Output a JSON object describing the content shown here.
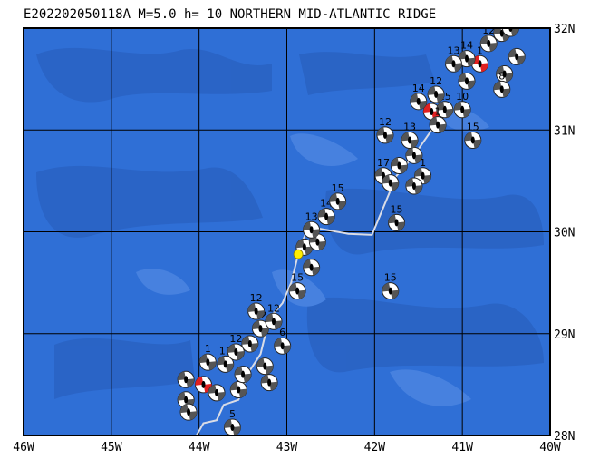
{
  "title": "E202202050118A M=5.0 h= 10 NORTHERN MID-ATLANTIC RIDGE",
  "map": {
    "lon_min": -46,
    "lon_max": -40,
    "lat_min": 28,
    "lat_max": 32,
    "lon_ticks": [
      {
        "value": -46,
        "label": "46W"
      },
      {
        "value": -45,
        "label": "45W"
      },
      {
        "value": -44,
        "label": "44W"
      },
      {
        "value": -43,
        "label": "43W"
      },
      {
        "value": -42,
        "label": "42W"
      },
      {
        "value": -41,
        "label": "41W"
      },
      {
        "value": -40,
        "label": "40W"
      }
    ],
    "lat_ticks": [
      {
        "value": 32,
        "label": "32N"
      },
      {
        "value": 31,
        "label": "31N"
      },
      {
        "value": 30,
        "label": "30N"
      },
      {
        "value": 29,
        "label": "29N"
      },
      {
        "value": 28,
        "label": "28N"
      }
    ],
    "colors": {
      "ocean": "#2f6fd6",
      "ocean_deep": "#2a63c4",
      "ocean_shallow": "#4a84e0",
      "grid": "#000000",
      "ridge": "#d9dce6",
      "highlight": "#e02020",
      "epicenter": "#ffee00"
    },
    "ridge_path": [
      [
        -44.03,
        28.0
      ],
      [
        -43.95,
        28.12
      ],
      [
        -43.8,
        28.15
      ],
      [
        -43.72,
        28.3
      ],
      [
        -43.55,
        28.35
      ],
      [
        -43.45,
        28.6
      ],
      [
        -43.3,
        28.8
      ],
      [
        -43.2,
        29.15
      ],
      [
        -43.05,
        29.3
      ],
      [
        -42.95,
        29.5
      ],
      [
        -42.85,
        29.85
      ],
      [
        -42.75,
        30.05
      ],
      [
        -42.3,
        29.98
      ],
      [
        -42.03,
        29.97
      ],
      [
        -41.75,
        30.55
      ],
      [
        -41.55,
        30.75
      ],
      [
        -41.35,
        31.0
      ],
      [
        -41.3,
        31.15
      ]
    ],
    "epicenter": {
      "lon": -42.87,
      "lat": 29.78
    },
    "mechanisms": [
      {
        "lon": -43.95,
        "lat": 28.5,
        "label": "",
        "color": "highlight"
      },
      {
        "lon": -43.8,
        "lat": 28.42,
        "label": ""
      },
      {
        "lon": -44.15,
        "lat": 28.55,
        "label": ""
      },
      {
        "lon": -43.55,
        "lat": 28.45,
        "label": ""
      },
      {
        "lon": -43.5,
        "lat": 28.6,
        "label": ""
      },
      {
        "lon": -43.7,
        "lat": 28.7,
        "label": "11"
      },
      {
        "lon": -43.9,
        "lat": 28.72,
        "label": "1"
      },
      {
        "lon": -43.58,
        "lat": 28.82,
        "label": "12"
      },
      {
        "lon": -43.42,
        "lat": 28.9,
        "label": ""
      },
      {
        "lon": -43.25,
        "lat": 28.68,
        "label": ""
      },
      {
        "lon": -43.2,
        "lat": 28.52,
        "label": ""
      },
      {
        "lon": -44.15,
        "lat": 28.35,
        "label": ""
      },
      {
        "lon": -44.12,
        "lat": 28.23,
        "label": ""
      },
      {
        "lon": -43.62,
        "lat": 28.08,
        "label": "5"
      },
      {
        "lon": -43.3,
        "lat": 29.05,
        "label": "12"
      },
      {
        "lon": -43.15,
        "lat": 29.12,
        "label": "12"
      },
      {
        "lon": -43.35,
        "lat": 29.22,
        "label": "12"
      },
      {
        "lon": -43.05,
        "lat": 28.88,
        "label": "6"
      },
      {
        "lon": -42.88,
        "lat": 29.42,
        "label": "15"
      },
      {
        "lon": -42.72,
        "lat": 29.65,
        "label": ""
      },
      {
        "lon": -42.8,
        "lat": 29.85,
        "label": ""
      },
      {
        "lon": -42.65,
        "lat": 29.9,
        "label": ""
      },
      {
        "lon": -42.72,
        "lat": 30.02,
        "label": "13"
      },
      {
        "lon": -42.55,
        "lat": 30.15,
        "label": "14"
      },
      {
        "lon": -42.42,
        "lat": 30.3,
        "label": "15"
      },
      {
        "lon": -41.75,
        "lat": 30.09,
        "label": "15"
      },
      {
        "lon": -41.82,
        "lat": 29.42,
        "label": "15"
      },
      {
        "lon": -41.9,
        "lat": 30.55,
        "label": "17"
      },
      {
        "lon": -41.72,
        "lat": 30.65,
        "label": ""
      },
      {
        "lon": -41.55,
        "lat": 30.75,
        "label": "1"
      },
      {
        "lon": -41.45,
        "lat": 30.55,
        "label": "1"
      },
      {
        "lon": -41.6,
        "lat": 30.9,
        "label": "13"
      },
      {
        "lon": -41.88,
        "lat": 30.95,
        "label": "12"
      },
      {
        "lon": -41.82,
        "lat": 30.48,
        "label": ""
      },
      {
        "lon": -41.55,
        "lat": 30.45,
        "label": ""
      },
      {
        "lon": -41.35,
        "lat": 31.18,
        "label": "1",
        "color": "highlight"
      },
      {
        "lon": -41.5,
        "lat": 31.28,
        "label": "14"
      },
      {
        "lon": -41.2,
        "lat": 31.2,
        "label": "15"
      },
      {
        "lon": -41.3,
        "lat": 31.35,
        "label": "12"
      },
      {
        "lon": -41.0,
        "lat": 31.2,
        "label": "10"
      },
      {
        "lon": -41.28,
        "lat": 31.05,
        "label": "1"
      },
      {
        "lon": -40.88,
        "lat": 30.9,
        "label": "15"
      },
      {
        "lon": -40.8,
        "lat": 31.65,
        "label": "1",
        "color": "highlight"
      },
      {
        "lon": -40.95,
        "lat": 31.7,
        "label": "14"
      },
      {
        "lon": -41.1,
        "lat": 31.65,
        "label": "13"
      },
      {
        "lon": -40.7,
        "lat": 31.85,
        "label": "12"
      },
      {
        "lon": -40.55,
        "lat": 31.95,
        "label": "15"
      },
      {
        "lon": -40.52,
        "lat": 31.55,
        "label": ""
      },
      {
        "lon": -40.38,
        "lat": 31.72,
        "label": ""
      },
      {
        "lon": -40.55,
        "lat": 31.4,
        "label": "8"
      },
      {
        "lon": -40.95,
        "lat": 31.48,
        "label": ""
      },
      {
        "lon": -40.45,
        "lat": 32.0,
        "label": "1"
      }
    ]
  }
}
